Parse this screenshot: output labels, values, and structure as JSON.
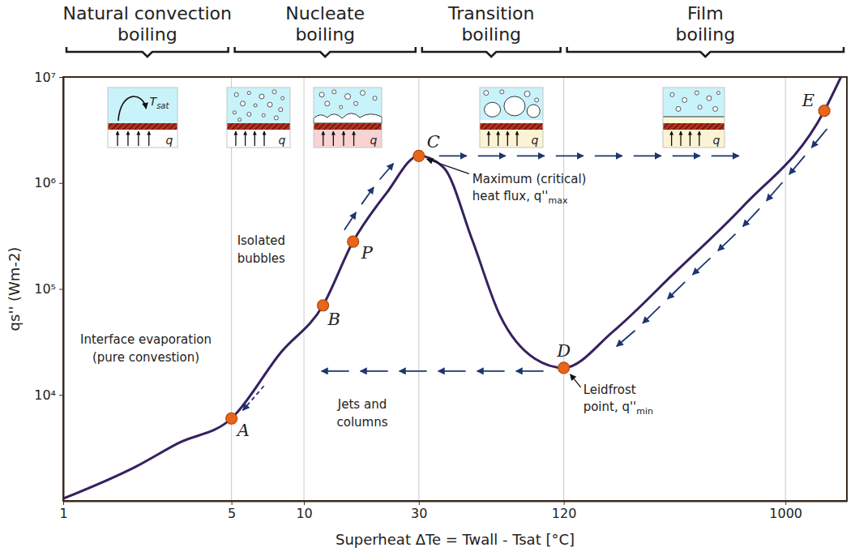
{
  "chart_data": {
    "type": "line",
    "log": true,
    "grid": "x",
    "x_label": "Superheat ΔTe = Twall - Tsat [°C]",
    "y_label": "qs'' (Wm-2)",
    "xlim": [
      1,
      1800
    ],
    "ylim": [
      1000,
      10000000
    ],
    "xticks": [
      1,
      5,
      10,
      30,
      120,
      1000
    ],
    "yticks": [
      {
        "value": 10000,
        "label": "10⁴"
      },
      {
        "value": 100000,
        "label": "10⁵"
      },
      {
        "value": 1000000,
        "label": "10⁶"
      },
      {
        "value": 10000000,
        "label": "10⁷"
      }
    ],
    "series": [
      {
        "type": "line",
        "color": "#35215f",
        "line_style": "solid",
        "x": [
          1,
          2,
          3,
          5,
          8,
          12,
          16,
          22,
          30,
          38,
          50,
          65,
          91,
          120,
          193,
          344,
          666,
          1450,
          1700
        ],
        "values": [
          1050,
          2100,
          3500,
          6000,
          25000,
          70000,
          280000,
          800000,
          1800000,
          1400000,
          290000,
          57000,
          22000,
          18000,
          40000,
          140000,
          600000,
          4800000,
          10000000
        ]
      },
      {
        "type": "scatter",
        "color": "#e8661a",
        "marker": "circle",
        "x": [
          5,
          12,
          16,
          30,
          120,
          1450
        ],
        "values": [
          6000,
          70000,
          280000,
          1800000,
          18000,
          4800000
        ],
        "labels": [
          "A",
          "B",
          "P",
          "C",
          "D",
          "E"
        ]
      }
    ],
    "regimes": [
      {
        "label": "Natural convection\nboiling",
        "range": [
          1,
          5
        ]
      },
      {
        "label": "Nucleate\nboiling",
        "range": [
          5,
          30
        ]
      },
      {
        "label": "Transition\nboiling",
        "range": [
          30,
          120
        ]
      },
      {
        "label": "Film\nboiling",
        "range": [
          120,
          1800
        ]
      }
    ],
    "annotations": {
      "isolated_bubbles": "Isolated\nbubbles",
      "interface_evaporation": "Interface evaporation\n(pure convestion)",
      "jets_columns": "Jets and\ncolumns",
      "critical_flux": {
        "text": "Maximum (critical)\nheat flux, q''",
        "subscript": "max"
      },
      "leidenfrost": {
        "text": "Leidfrost\npoint, q''",
        "subscript": "min"
      },
      "heat_symbol": "q",
      "saturation_temp": {
        "text": "T",
        "subscript": "sat"
      }
    }
  }
}
